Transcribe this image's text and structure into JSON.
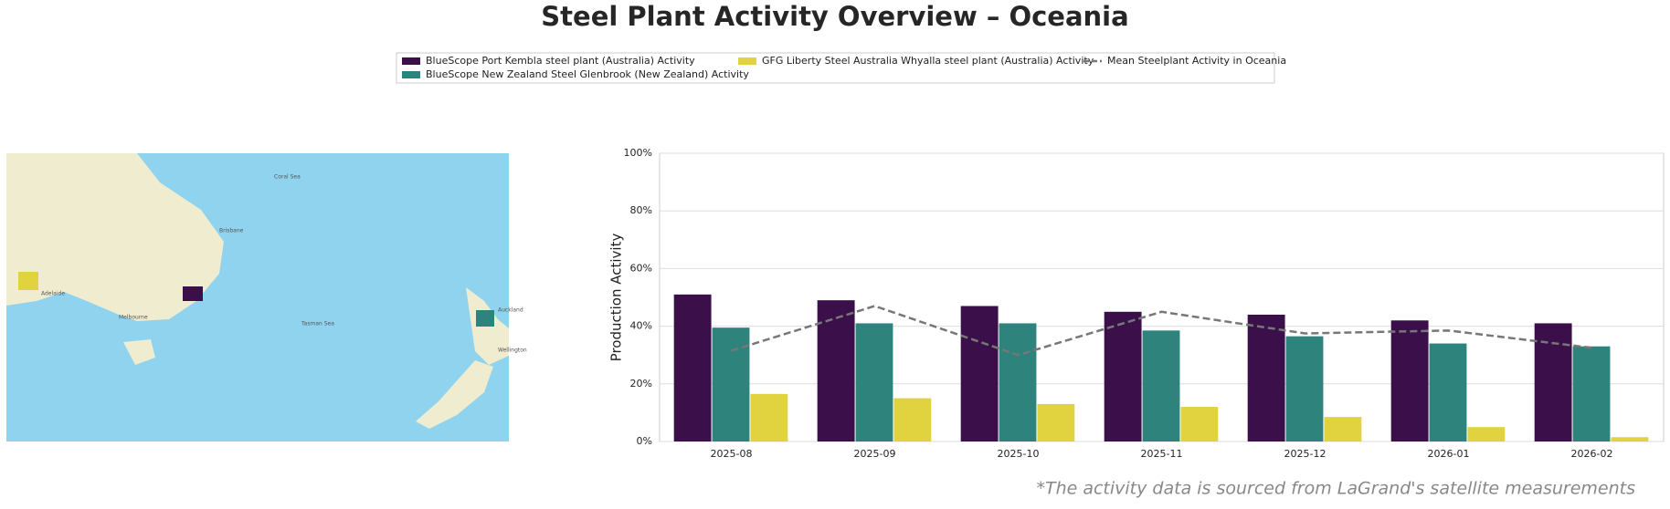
{
  "chart_data": {
    "type": "bar",
    "title": "Steel Plant Activity Overview – Oceania",
    "ylabel": "Production Activity",
    "footnote": "*The activity data is sourced from LaGrand's satellite measurements",
    "categories": [
      "2025-08",
      "2025-09",
      "2025-10",
      "2025-11",
      "2025-12",
      "2026-01",
      "2026-02"
    ],
    "series": [
      {
        "name": "BlueScope Port Kembla steel plant (Australia) Activity",
        "type": "bar",
        "color": "#3b0f4a",
        "values": [
          51,
          49,
          47,
          45,
          44,
          42,
          41
        ]
      },
      {
        "name": "BlueScope New Zealand Steel Glenbrook (New Zealand) Activity",
        "type": "bar",
        "color": "#2e837c",
        "values": [
          39.5,
          41,
          41,
          38.5,
          36.5,
          34,
          33
        ]
      },
      {
        "name": "GFG Liberty Steel Australia Whyalla steel plant (Australia) Activity",
        "type": "bar",
        "color": "#e1d340",
        "values": [
          16.5,
          15,
          13,
          12,
          8.5,
          5,
          1.5
        ]
      },
      {
        "name": "Mean Steelplant Activity in Oceania",
        "type": "line",
        "color": "#777777",
        "values": [
          31.5,
          47,
          30,
          45,
          37.5,
          38.5,
          32.5
        ]
      }
    ],
    "ylim": [
      0,
      100
    ],
    "yticks": [
      {
        "value": 0,
        "label": "0%"
      },
      {
        "value": 20,
        "label": "20%"
      },
      {
        "value": 40,
        "label": "40%"
      },
      {
        "value": 60,
        "label": "60%"
      },
      {
        "value": 80,
        "label": "80%"
      },
      {
        "value": 100,
        "label": "100%"
      }
    ],
    "grid": true,
    "legend": "top",
    "map_labels": [
      "Brisbane",
      "Adelaide",
      "Melbourne",
      "Coral Sea",
      "Tasman Sea",
      "Auckland",
      "Wellington"
    ]
  }
}
